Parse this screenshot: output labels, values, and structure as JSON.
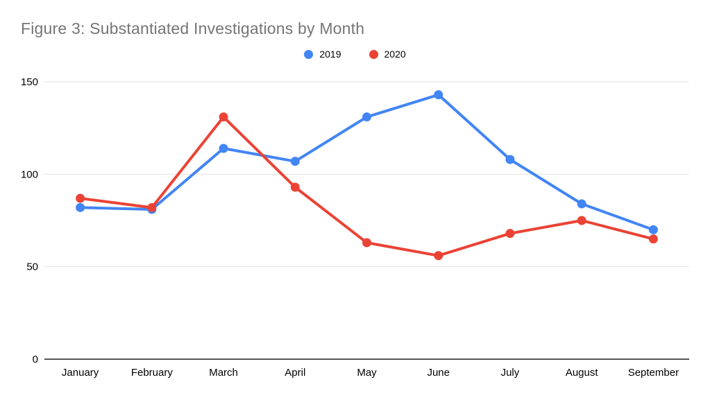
{
  "title": "Figure 3: Substantiated Investigations by Month",
  "legend": [
    {
      "label": "2019",
      "color": "#4285F4"
    },
    {
      "label": "2020",
      "color": "#EA4335"
    }
  ],
  "chart_data": {
    "type": "line",
    "title": "Figure 3: Substantiated Investigations by Month",
    "categories": [
      "January",
      "February",
      "March",
      "April",
      "May",
      "June",
      "July",
      "August",
      "September"
    ],
    "series": [
      {
        "name": "2019",
        "color": "#4285F4",
        "values": [
          82,
          81,
          114,
          107,
          131,
          143,
          108,
          84,
          70
        ]
      },
      {
        "name": "2020",
        "color": "#EA4335",
        "values": [
          87,
          82,
          131,
          93,
          63,
          56,
          68,
          75,
          65
        ]
      }
    ],
    "xlabel": "",
    "ylabel": "",
    "ylim": [
      0,
      150
    ],
    "yticks": [
      0,
      50,
      100,
      150
    ],
    "grid": true,
    "legend_position": "top"
  },
  "colors": {
    "title_text": "#757575",
    "tick_text": "#000000",
    "gridline": "#e3e3e3",
    "baseline": "#555555",
    "background": "#ffffff"
  }
}
